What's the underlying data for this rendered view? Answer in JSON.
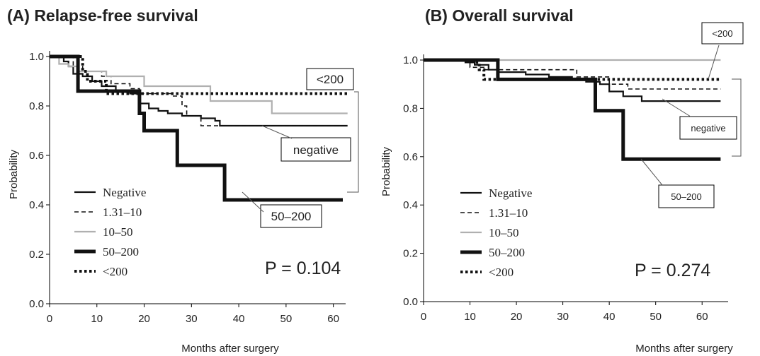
{
  "chart_data": [
    {
      "type": "line",
      "title": "(A) Relapse-free survival",
      "xlabel": "Months after surgery",
      "ylabel": "Probability",
      "xlim": [
        0,
        62
      ],
      "ylim": [
        0,
        1.0
      ],
      "x_ticks": [
        0,
        10,
        20,
        30,
        40,
        50,
        60
      ],
      "y_ticks": [
        "0.0",
        "0.2",
        "0.4",
        "0.6",
        "0.8",
        "1.0"
      ],
      "legend": {
        "placement": "bottom-left",
        "entries": [
          "Negative",
          "1.31–10",
          "10–50",
          "50–200",
          "<200"
        ]
      },
      "p_value": "P = 0.104",
      "callouts": [
        "<200",
        "negative",
        "50–200"
      ],
      "series": [
        {
          "name": "Negative",
          "style": "thin-solid",
          "color": "#111111",
          "points": [
            [
              0,
              1.0
            ],
            [
              3,
              0.98
            ],
            [
              4,
              0.96
            ],
            [
              5,
              0.93
            ],
            [
              7,
              0.92
            ],
            [
              9,
              0.9
            ],
            [
              11,
              0.88
            ],
            [
              14,
              0.86
            ],
            [
              17,
              0.85
            ],
            [
              19,
              0.81
            ],
            [
              21,
              0.79
            ],
            [
              23,
              0.78
            ],
            [
              25,
              0.77
            ],
            [
              28,
              0.76
            ],
            [
              32,
              0.75
            ],
            [
              35,
              0.74
            ],
            [
              36,
              0.72
            ],
            [
              63,
              0.72
            ]
          ]
        },
        {
          "name": "1.31–10",
          "style": "dashed",
          "color": "#111111",
          "points": [
            [
              0,
              1.0
            ],
            [
              5,
              0.96
            ],
            [
              7,
              0.94
            ],
            [
              11,
              0.92
            ],
            [
              13,
              0.89
            ],
            [
              17,
              0.87
            ],
            [
              19,
              0.85
            ],
            [
              26,
              0.84
            ],
            [
              28,
              0.8
            ],
            [
              29,
              0.76
            ],
            [
              32,
              0.72
            ],
            [
              63,
              0.72
            ]
          ]
        },
        {
          "name": "10–50",
          "style": "solid",
          "color": "#b0b0b0",
          "points": [
            [
              0,
              1.0
            ],
            [
              2,
              0.97
            ],
            [
              4,
              0.96
            ],
            [
              6,
              0.94
            ],
            [
              12,
              0.92
            ],
            [
              20,
              0.88
            ],
            [
              34,
              0.82
            ],
            [
              47,
              0.77
            ],
            [
              63,
              0.77
            ]
          ]
        },
        {
          "name": "50–200",
          "style": "thick-solid",
          "color": "#111111",
          "points": [
            [
              0,
              1.0
            ],
            [
              5,
              1.0
            ],
            [
              6,
              0.86
            ],
            [
              18,
              0.86
            ],
            [
              19,
              0.77
            ],
            [
              20,
              0.7
            ],
            [
              27,
              0.7
            ],
            [
              27,
              0.56
            ],
            [
              37,
              0.56
            ],
            [
              37,
              0.42
            ],
            [
              62,
              0.42
            ]
          ]
        },
        {
          "name": "<200",
          "style": "dotted",
          "color": "#111111",
          "points": [
            [
              0,
              1.0
            ],
            [
              6,
              1.0
            ],
            [
              7,
              0.94
            ],
            [
              8,
              0.9
            ],
            [
              12,
              0.85
            ],
            [
              63,
              0.85
            ]
          ]
        }
      ]
    },
    {
      "type": "line",
      "title": "(B) Overall survival",
      "xlabel": "Months after surgery",
      "ylabel": "Probability",
      "xlim": [
        0,
        65
      ],
      "ylim": [
        0,
        1.0
      ],
      "x_ticks": [
        0,
        10,
        20,
        30,
        40,
        50,
        60
      ],
      "y_ticks": [
        "0.0",
        "0.2",
        "0.4",
        "0.6",
        "0.8",
        "1.0"
      ],
      "legend": {
        "placement": "bottom-left",
        "entries": [
          "Negative",
          "1.31–10",
          "10–50",
          "50–200",
          "<200"
        ]
      },
      "p_value": "P = 0.274",
      "callouts": [
        "<200",
        "negative",
        "50–200"
      ],
      "series": [
        {
          "name": "Negative",
          "style": "thin-solid",
          "color": "#111111",
          "points": [
            [
              0,
              1.0
            ],
            [
              9,
              0.99
            ],
            [
              11,
              0.98
            ],
            [
              14,
              0.96
            ],
            [
              16,
              0.95
            ],
            [
              22,
              0.94
            ],
            [
              27,
              0.93
            ],
            [
              32,
              0.92
            ],
            [
              35,
              0.91
            ],
            [
              38,
              0.9
            ],
            [
              40,
              0.87
            ],
            [
              43,
              0.85
            ],
            [
              47,
              0.83
            ],
            [
              64,
              0.83
            ]
          ]
        },
        {
          "name": "1.31–10",
          "style": "dashed",
          "color": "#111111",
          "points": [
            [
              0,
              1.0
            ],
            [
              10,
              0.97
            ],
            [
              13,
              0.96
            ],
            [
              29,
              0.96
            ],
            [
              33,
              0.93
            ],
            [
              40,
              0.9
            ],
            [
              44,
              0.88
            ],
            [
              64,
              0.88
            ]
          ]
        },
        {
          "name": "10–50",
          "style": "solid",
          "color": "#b0b0b0",
          "points": [
            [
              0,
              1.0
            ],
            [
              64,
              1.0
            ]
          ]
        },
        {
          "name": "50–200",
          "style": "thick-solid",
          "color": "#111111",
          "points": [
            [
              0,
              1.0
            ],
            [
              16,
              1.0
            ],
            [
              16,
              0.92
            ],
            [
              37,
              0.92
            ],
            [
              37,
              0.79
            ],
            [
              43,
              0.79
            ],
            [
              43,
              0.59
            ],
            [
              64,
              0.59
            ]
          ]
        },
        {
          "name": "<200",
          "style": "dotted",
          "color": "#111111",
          "points": [
            [
              0,
              1.0
            ],
            [
              11,
              0.99
            ],
            [
              12,
              0.96
            ],
            [
              13,
              0.92
            ],
            [
              64,
              0.92
            ]
          ]
        }
      ]
    }
  ]
}
